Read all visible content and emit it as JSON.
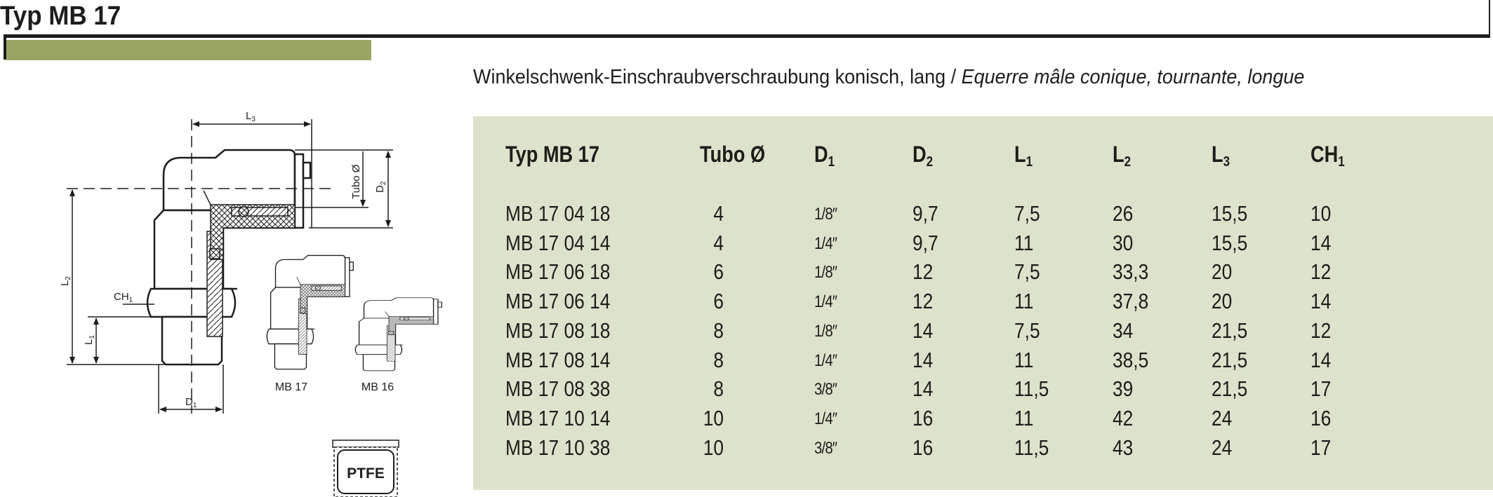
{
  "header": {
    "title": "Typ MB 17",
    "accent_color": "#9ba562",
    "subtitle_de": "Winkelschwenk-Einschraubverschraubung konisch, lang / ",
    "subtitle_fr": "Equerre mâle conique, tournante, longue"
  },
  "drawing": {
    "labels": {
      "L3": "L",
      "L3_sub": "3",
      "tubo": "Tubo Ø",
      "D2": "D",
      "D2_sub": "2",
      "L2": "L",
      "L2_sub": "2",
      "CH1": "CH",
      "CH1_sub": "1",
      "L1": "L",
      "L1_sub": "1",
      "D1": "D",
      "D1_sub": "1",
      "variant_a": "MB 17",
      "variant_b": "MB 16",
      "material": "PTFE"
    }
  },
  "table": {
    "background": "#dde2cb",
    "columns": [
      {
        "label": "Typ MB 17",
        "sub": ""
      },
      {
        "label": "Tubo Ø",
        "sub": ""
      },
      {
        "label": "D",
        "sub": "1"
      },
      {
        "label": "D",
        "sub": "2"
      },
      {
        "label": "L",
        "sub": "1"
      },
      {
        "label": "L",
        "sub": "2"
      },
      {
        "label": "L",
        "sub": "3"
      },
      {
        "label": "CH",
        "sub": "1"
      }
    ],
    "rows": [
      [
        "MB 17 04 18",
        "4",
        "1/8″",
        "9,7",
        "7,5",
        "26",
        "15,5",
        "10"
      ],
      [
        "MB 17 04 14",
        "4",
        "1/4″",
        "9,7",
        "11",
        "30",
        "15,5",
        "14"
      ],
      [
        "MB 17 06 18",
        "6",
        "1/8″",
        "12",
        "7,5",
        "33,3",
        "20",
        "12"
      ],
      [
        "MB 17 06 14",
        "6",
        "1/4″",
        "12",
        "11",
        "37,8",
        "20",
        "14"
      ],
      [
        "MB 17 08 18",
        "8",
        "1/8″",
        "14",
        "7,5",
        "34",
        "21,5",
        "12"
      ],
      [
        "MB 17 08 14",
        "8",
        "1/4″",
        "14",
        "11",
        "38,5",
        "21,5",
        "14"
      ],
      [
        "MB 17 08 38",
        "8",
        "3/8″",
        "14",
        "11,5",
        "39",
        "21,5",
        "17"
      ],
      [
        "MB 17 10 14",
        "10",
        "1/4″",
        "16",
        "11",
        "42",
        "24",
        "16"
      ],
      [
        "MB 17 10 38",
        "10",
        "3/8″",
        "16",
        "11,5",
        "43",
        "24",
        "17"
      ]
    ]
  }
}
